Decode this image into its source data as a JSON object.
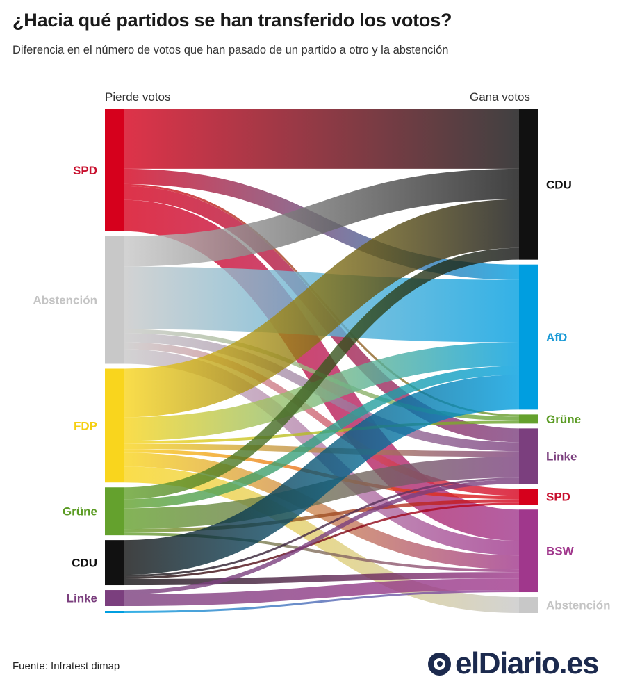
{
  "header": {
    "title": "¿Hacia qué partidos se han transferido los votos?",
    "subtitle": "Diferencia en el número de votos que han pasado de un partido a otro y la abstención"
  },
  "footer": {
    "source": "Fuente: Infratest dimap",
    "logo_text": "elDiario.es"
  },
  "chart_data": {
    "type": "sankey",
    "left_label": "Pierde votos",
    "right_label": "Gana votos",
    "sources": [
      {
        "id": "SPD",
        "label": "SPD",
        "color": "#d6001c",
        "label_color": "#c8102e"
      },
      {
        "id": "Abstencion",
        "label": "Abstención",
        "color": "#c8c8c8",
        "label_color": "#c4c4c4"
      },
      {
        "id": "FDP",
        "label": "FDP",
        "color": "#f9d51d",
        "label_color": "#f5cf12"
      },
      {
        "id": "Grune",
        "label": "Grüne",
        "color": "#64a12d",
        "label_color": "#5a9b23"
      },
      {
        "id": "CDU",
        "label": "CDU",
        "color": "#111111",
        "label_color": "#111111"
      },
      {
        "id": "Linke",
        "label": "Linke",
        "color": "#7b3f7e",
        "label_color": "#7b3f7e"
      },
      {
        "id": "AfD",
        "label": "",
        "color": "#009ee0",
        "label_color": "#009ee0"
      }
    ],
    "targets": [
      {
        "id": "CDU",
        "label": "CDU",
        "color": "#111111",
        "label_color": "#111111"
      },
      {
        "id": "AfD",
        "label": "AfD",
        "color": "#009ee0",
        "label_color": "#1a9ad6"
      },
      {
        "id": "Grune",
        "label": "Grüne",
        "color": "#64a12d",
        "label_color": "#5a9b23"
      },
      {
        "id": "Linke",
        "label": "Linke",
        "color": "#7b3f7e",
        "label_color": "#7b3f7e"
      },
      {
        "id": "SPD",
        "label": "SPD",
        "color": "#d6001c",
        "label_color": "#c8102e"
      },
      {
        "id": "BSW",
        "label": "BSW",
        "color": "#a0378c",
        "label_color": "#a0378c"
      },
      {
        "id": "Abstencion",
        "label": "Abstención",
        "color": "#c8c8c8",
        "label_color": "#c4c4c4"
      }
    ],
    "flows": [
      {
        "source": "SPD",
        "target": "CDU",
        "value": 86
      },
      {
        "source": "SPD",
        "target": "AfD",
        "value": 22
      },
      {
        "source": "SPD",
        "target": "Grune",
        "value": 3
      },
      {
        "source": "SPD",
        "target": "Linke",
        "value": 20
      },
      {
        "source": "SPD",
        "target": "BSW",
        "value": 45
      },
      {
        "source": "Abstencion",
        "target": "CDU",
        "value": 44
      },
      {
        "source": "Abstencion",
        "target": "AfD",
        "value": 90
      },
      {
        "source": "Abstencion",
        "target": "Grune",
        "value": 6
      },
      {
        "source": "Abstencion",
        "target": "Linke",
        "value": 13
      },
      {
        "source": "Abstencion",
        "target": "SPD",
        "value": 10
      },
      {
        "source": "Abstencion",
        "target": "BSW",
        "value": 21
      },
      {
        "source": "FDP",
        "target": "CDU",
        "value": 70
      },
      {
        "source": "FDP",
        "target": "AfD",
        "value": 34
      },
      {
        "source": "FDP",
        "target": "Grune",
        "value": 4
      },
      {
        "source": "FDP",
        "target": "Linke",
        "value": 8
      },
      {
        "source": "FDP",
        "target": "SPD",
        "value": 5
      },
      {
        "source": "FDP",
        "target": "BSW",
        "value": 20
      },
      {
        "source": "FDP",
        "target": "Abstencion",
        "value": 23
      },
      {
        "source": "Grune",
        "target": "CDU",
        "value": 17
      },
      {
        "source": "Grune",
        "target": "AfD",
        "value": 13
      },
      {
        "source": "Grune",
        "target": "Linke",
        "value": 30
      },
      {
        "source": "Grune",
        "target": "SPD",
        "value": 5
      },
      {
        "source": "Grune",
        "target": "BSW",
        "value": 4
      },
      {
        "source": "CDU",
        "target": "AfD",
        "value": 50
      },
      {
        "source": "CDU",
        "target": "Linke",
        "value": 3
      },
      {
        "source": "CDU",
        "target": "SPD",
        "value": 3
      },
      {
        "source": "CDU",
        "target": "BSW",
        "value": 9
      },
      {
        "source": "Linke",
        "target": "Linke",
        "value": 6
      },
      {
        "source": "Linke",
        "target": "BSW",
        "value": 17
      },
      {
        "source": "AfD",
        "target": "BSW",
        "value": 3
      }
    ]
  }
}
